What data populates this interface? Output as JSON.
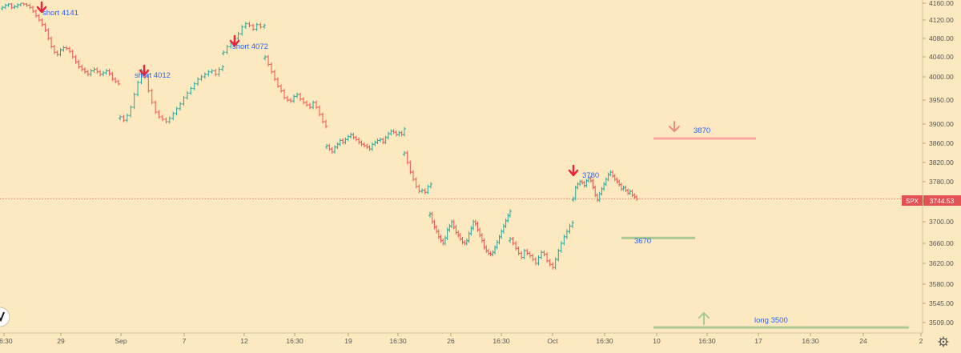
{
  "symbol": "SPX",
  "last_price": "3744.53",
  "colors": {
    "background": "#fde9c0",
    "up": "#26a69a",
    "down": "#ef5350",
    "short_arrow": "#e8253a",
    "annotation_text": "#2962ff",
    "resistance_line": "#f4a6a0",
    "support_line": "#a9c98e",
    "resistance_arrow": "#ee8a82",
    "support_arrow": "#a9c98e",
    "axis_text": "#555555",
    "price_tag": "#e35252"
  },
  "chart_data": {
    "type": "candlestick",
    "title": "",
    "xlabel": "",
    "ylabel": "",
    "ylim": [
      3490,
      4165
    ],
    "y_ticks": [
      "4160.00",
      "4120.00",
      "4080.00",
      "4040.00",
      "4000.00",
      "3950.00",
      "3900.00",
      "3860.00",
      "3820.00",
      "3780.00",
      "3740.00",
      "3700.00",
      "3660.00",
      "3620.00",
      "3580.00",
      "3545.00",
      "3509.00"
    ],
    "x_ticks": [
      "16:30",
      "29",
      "Sep",
      "7",
      "12",
      "16:30",
      "19",
      "16:30",
      "26",
      "16:30",
      "Oct",
      "16:30",
      "10",
      "16:30",
      "17",
      "16:30",
      "24",
      "2"
    ],
    "current_price": 3744.53,
    "segments": [
      {
        "name": "late-aug",
        "points": [
          4150,
          4155,
          4158,
          4150,
          4152,
          4156,
          4160,
          4158,
          4155,
          4150,
          4141,
          4130,
          4120,
          4110,
          4098,
          4080,
          4062,
          4050,
          4045,
          4055,
          4060,
          4058,
          4052,
          4040,
          4030,
          4020,
          4015,
          4010,
          4005,
          4012,
          4015,
          4010,
          4005,
          4008,
          4012,
          4006,
          3995,
          3990,
          3985
        ]
      },
      {
        "name": "early-sep",
        "points": [
          3915,
          3908,
          3918,
          3935,
          3962,
          3988,
          4012,
          4000,
          3970,
          3945,
          3925,
          3915,
          3910,
          3905,
          3912,
          3922,
          3932,
          3942,
          3955,
          3965,
          3975,
          3985,
          3995,
          4000,
          4005,
          4010,
          4012,
          4005,
          4015,
          4020
        ]
      },
      {
        "name": "mid-sep",
        "points": [
          4050,
          4062,
          4072,
          4080,
          4090,
          4105,
          4112,
          4108,
          4100,
          4110,
          4105,
          4108
        ]
      },
      {
        "name": "sep-decline",
        "points": [
          4040,
          4025,
          4010,
          3995,
          3980,
          3970,
          3955,
          3950,
          3948,
          3958,
          3962,
          3952,
          3945,
          3940,
          3935,
          3945,
          3935,
          3920,
          3905,
          3895
        ]
      },
      {
        "name": "sep-range",
        "points": [
          3855,
          3848,
          3842,
          3852,
          3858,
          3866,
          3862,
          3868,
          3874,
          3878,
          3872,
          3868,
          3862,
          3858,
          3855,
          3852,
          3848,
          3858,
          3862,
          3866,
          3868,
          3862,
          3872,
          3880,
          3885,
          3883,
          3878,
          3882,
          3878,
          3890
        ]
      },
      {
        "name": "late-sep",
        "points": [
          3840,
          3820,
          3800,
          3785,
          3770,
          3760,
          3762,
          3758,
          3770,
          3775
        ]
      },
      {
        "name": "sep-oct-lows",
        "points": [
          3715,
          3700,
          3690,
          3682,
          3672,
          3665,
          3660,
          3670,
          3685,
          3692,
          3700,
          3690,
          3680,
          3675,
          3668,
          3662,
          3660,
          3665,
          3678,
          3688,
          3700,
          3696,
          3685,
          3675,
          3665,
          3652,
          3645,
          3640,
          3638,
          3642,
          3652,
          3662,
          3672,
          3682,
          3692,
          3702,
          3712,
          3720
        ]
      },
      {
        "name": "early-oct",
        "points": [
          3668,
          3660,
          3650,
          3640,
          3632,
          3645,
          3640,
          3635,
          3628,
          3620,
          3632,
          3642,
          3638,
          3625,
          3618,
          3612,
          3628,
          3645,
          3660,
          3672,
          3682,
          3692,
          3698
        ]
      },
      {
        "name": "oct-rebound",
        "points": [
          3745,
          3768,
          3775,
          3780,
          3778,
          3772,
          3782,
          3788,
          3782,
          3768,
          3752,
          3742,
          3755,
          3765,
          3775,
          3785,
          3795,
          3800,
          3792,
          3785,
          3780,
          3774,
          3765,
          3768,
          3762,
          3756,
          3760,
          3752,
          3748,
          3744
        ]
      }
    ],
    "annotations": [
      {
        "label": "short 4141",
        "price": 4141
      },
      {
        "label": "short  4012",
        "price": 4012
      },
      {
        "label": "short  4072",
        "price": 4072
      },
      {
        "label": "3780",
        "price": 3780
      }
    ],
    "levels": [
      {
        "label": "3870",
        "price": 3870,
        "kind": "resistance",
        "arrow": "down"
      },
      {
        "label": "3670",
        "price": 3670,
        "kind": "support"
      },
      {
        "label": "long 3500",
        "price": 3500,
        "kind": "support",
        "arrow": "up"
      }
    ]
  }
}
